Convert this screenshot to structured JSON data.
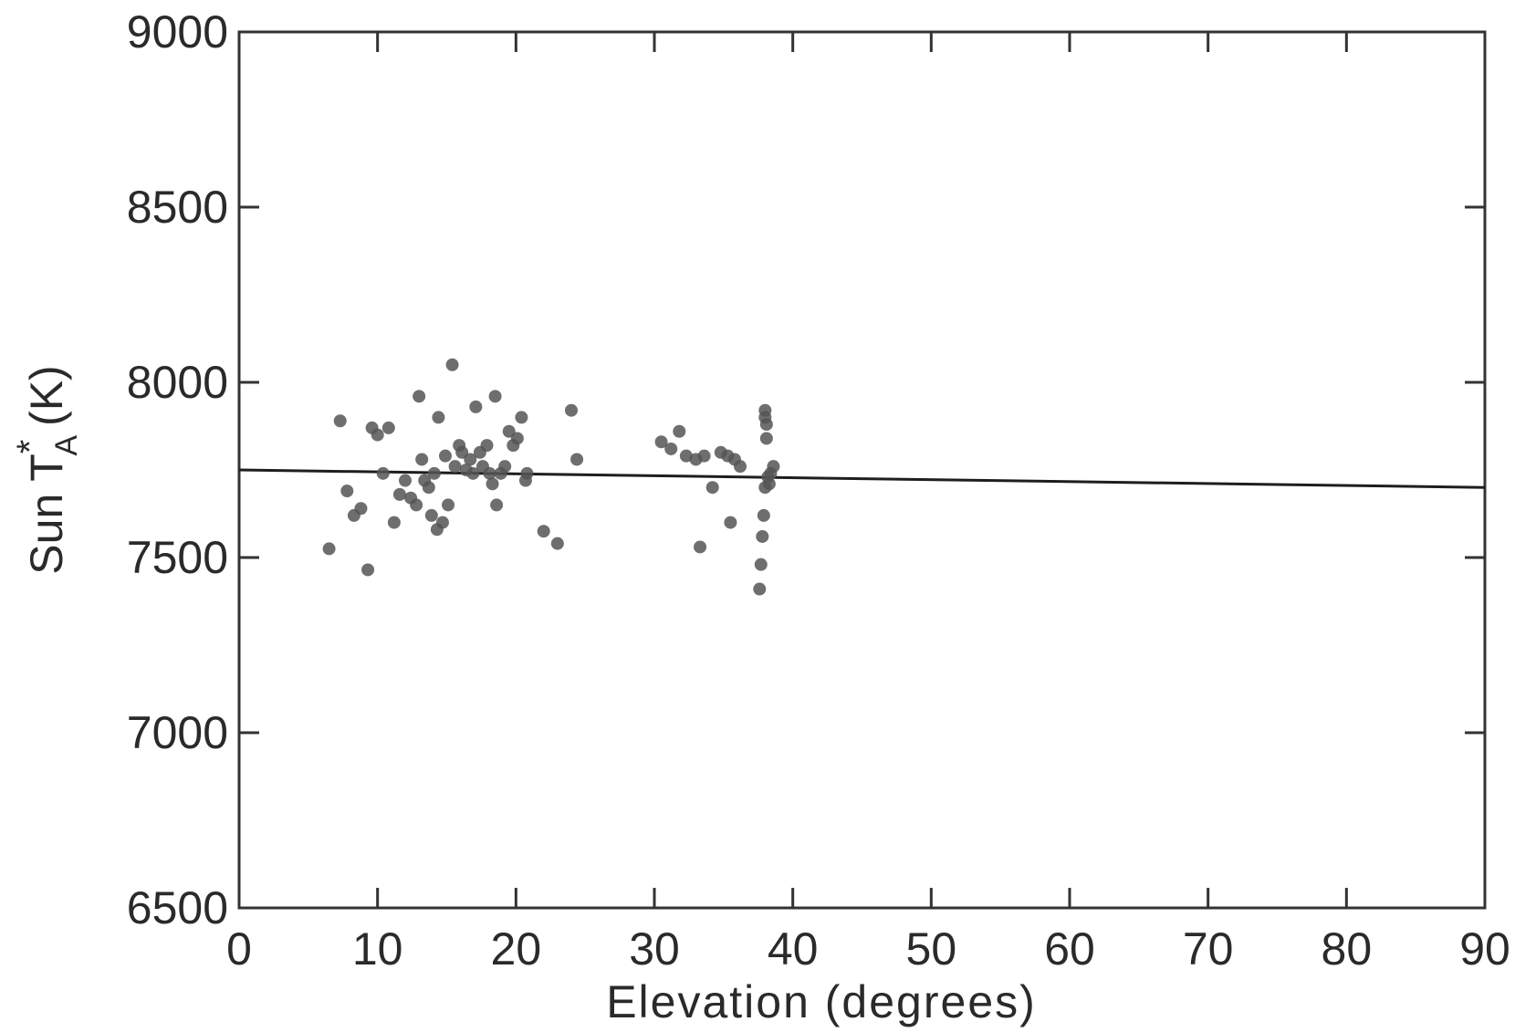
{
  "chart_data": {
    "type": "scatter",
    "title": "",
    "xlabel": "Elevation (degrees)",
    "ylabel_main": "Sun  T",
    "ylabel_sup": "*",
    "ylabel_sub": "A",
    "ylabel_unit": "(K)",
    "xlim": [
      0,
      90
    ],
    "ylim": [
      6500,
      9000
    ],
    "xticks": [
      "0",
      "10",
      "20",
      "30",
      "40",
      "50",
      "60",
      "70",
      "80",
      "90"
    ],
    "yticks": [
      "6500",
      "7000",
      "7500",
      "8000",
      "8500",
      "9000"
    ],
    "grid": false,
    "legend": "none",
    "points": [
      {
        "x": 6.5,
        "y": 7525
      },
      {
        "x": 7.3,
        "y": 7890
      },
      {
        "x": 7.8,
        "y": 7690
      },
      {
        "x": 8.3,
        "y": 7620
      },
      {
        "x": 8.8,
        "y": 7640
      },
      {
        "x": 9.3,
        "y": 7465
      },
      {
        "x": 9.6,
        "y": 7870
      },
      {
        "x": 10.0,
        "y": 7850
      },
      {
        "x": 10.4,
        "y": 7740
      },
      {
        "x": 10.8,
        "y": 7870
      },
      {
        "x": 11.2,
        "y": 7600
      },
      {
        "x": 11.6,
        "y": 7680
      },
      {
        "x": 12.0,
        "y": 7720
      },
      {
        "x": 12.4,
        "y": 7670
      },
      {
        "x": 12.8,
        "y": 7650
      },
      {
        "x": 13.0,
        "y": 7960
      },
      {
        "x": 13.2,
        "y": 7780
      },
      {
        "x": 13.4,
        "y": 7720
      },
      {
        "x": 13.7,
        "y": 7700
      },
      {
        "x": 13.9,
        "y": 7620
      },
      {
        "x": 14.1,
        "y": 7740
      },
      {
        "x": 14.3,
        "y": 7580
      },
      {
        "x": 14.4,
        "y": 7900
      },
      {
        "x": 14.7,
        "y": 7600
      },
      {
        "x": 14.9,
        "y": 7790
      },
      {
        "x": 15.1,
        "y": 7650
      },
      {
        "x": 15.4,
        "y": 8050
      },
      {
        "x": 15.6,
        "y": 7760
      },
      {
        "x": 15.9,
        "y": 7820
      },
      {
        "x": 16.1,
        "y": 7800
      },
      {
        "x": 16.4,
        "y": 7750
      },
      {
        "x": 16.7,
        "y": 7780
      },
      {
        "x": 16.9,
        "y": 7740
      },
      {
        "x": 17.1,
        "y": 7930
      },
      {
        "x": 17.4,
        "y": 7800
      },
      {
        "x": 17.6,
        "y": 7760
      },
      {
        "x": 17.9,
        "y": 7820
      },
      {
        "x": 18.1,
        "y": 7740
      },
      {
        "x": 18.3,
        "y": 7710
      },
      {
        "x": 18.5,
        "y": 7960
      },
      {
        "x": 18.6,
        "y": 7650
      },
      {
        "x": 18.9,
        "y": 7740
      },
      {
        "x": 19.2,
        "y": 7760
      },
      {
        "x": 19.5,
        "y": 7860
      },
      {
        "x": 19.8,
        "y": 7820
      },
      {
        "x": 20.1,
        "y": 7840
      },
      {
        "x": 20.4,
        "y": 7900
      },
      {
        "x": 20.7,
        "y": 7720
      },
      {
        "x": 20.8,
        "y": 7740
      },
      {
        "x": 22.0,
        "y": 7575
      },
      {
        "x": 23.0,
        "y": 7540
      },
      {
        "x": 24.0,
        "y": 7920
      },
      {
        "x": 24.4,
        "y": 7780
      },
      {
        "x": 30.5,
        "y": 7830
      },
      {
        "x": 31.2,
        "y": 7810
      },
      {
        "x": 31.8,
        "y": 7860
      },
      {
        "x": 32.3,
        "y": 7790
      },
      {
        "x": 33.0,
        "y": 7780
      },
      {
        "x": 33.3,
        "y": 7530
      },
      {
        "x": 33.6,
        "y": 7790
      },
      {
        "x": 34.2,
        "y": 7700
      },
      {
        "x": 34.8,
        "y": 7800
      },
      {
        "x": 35.3,
        "y": 7790
      },
      {
        "x": 35.5,
        "y": 7600
      },
      {
        "x": 35.8,
        "y": 7780
      },
      {
        "x": 36.2,
        "y": 7760
      },
      {
        "x": 37.6,
        "y": 7410
      },
      {
        "x": 37.7,
        "y": 7480
      },
      {
        "x": 37.8,
        "y": 7560
      },
      {
        "x": 37.9,
        "y": 7620
      },
      {
        "x": 38.0,
        "y": 7700
      },
      {
        "x": 38.0,
        "y": 7920
      },
      {
        "x": 38.0,
        "y": 7900
      },
      {
        "x": 38.1,
        "y": 7840
      },
      {
        "x": 38.1,
        "y": 7880
      },
      {
        "x": 38.2,
        "y": 7730
      },
      {
        "x": 38.3,
        "y": 7710
      },
      {
        "x": 38.4,
        "y": 7740
      },
      {
        "x": 38.6,
        "y": 7760
      }
    ],
    "fit_line": {
      "x": [
        0,
        90
      ],
      "y": [
        7750,
        7700
      ]
    },
    "colors": {
      "marker": "#555555",
      "line": "#1e1e1e",
      "axis": "#333333"
    }
  }
}
